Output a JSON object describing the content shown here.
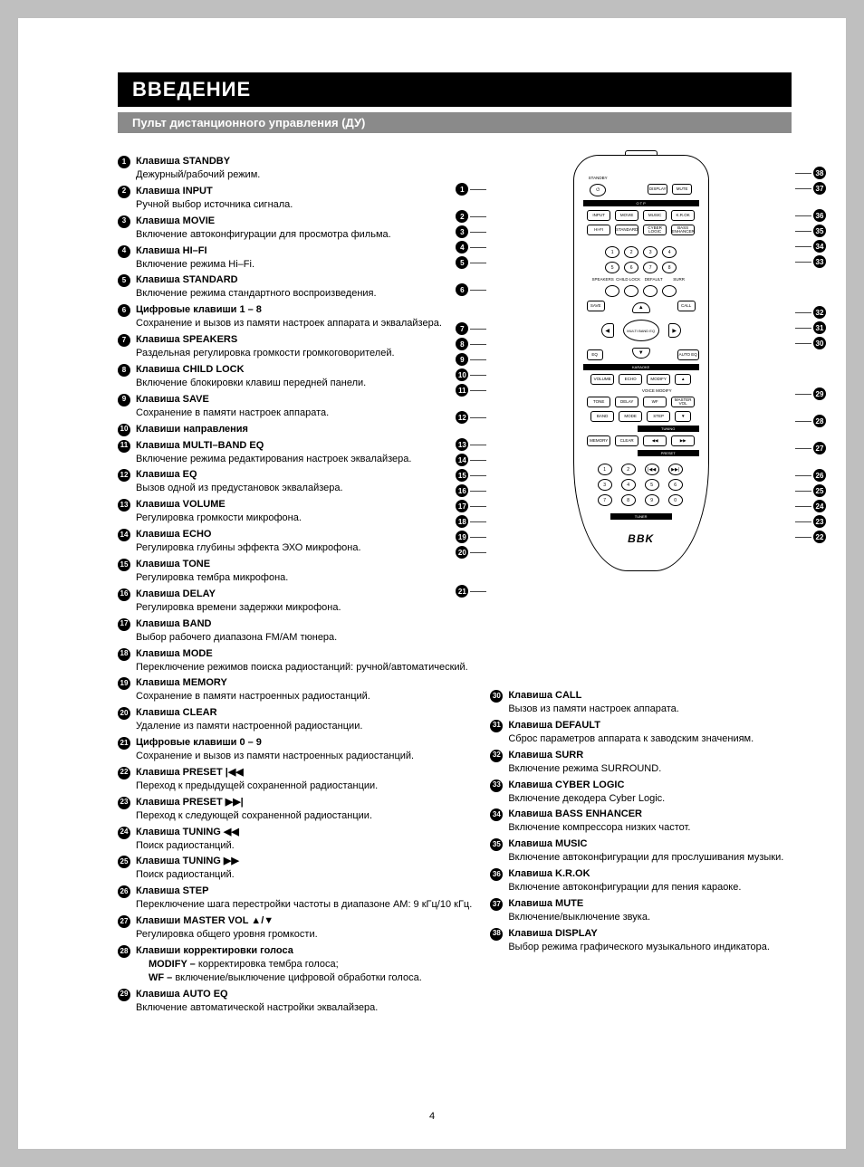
{
  "header": {
    "title": "ВВЕДЕНИЕ",
    "subtitle": "Пульт дистанционного управления (ДУ)"
  },
  "page_number": "4",
  "brand": "BBK",
  "remote": {
    "top_label": "STANDBY",
    "top_right": [
      "DISPLAY",
      "MUTE"
    ],
    "banner1": "O T P",
    "row1": [
      "INPUT",
      "MOVIE",
      "MUSIC",
      "K.R.OK"
    ],
    "row2": [
      "HI-FI",
      "STANDARD",
      "CYBER\nLOGIC",
      "BASS\nENHANCER"
    ],
    "digits8": [
      "1",
      "2",
      "3",
      "4",
      "5",
      "6",
      "7",
      "8"
    ],
    "d8_sub": [
      "SPEAKERS",
      "CHILD LOCK",
      "DEFAULT",
      "SURR"
    ],
    "save": "SAVE",
    "call": "CALL",
    "center": "MULTI BAND\nEQ",
    "eq": "EQ",
    "auto": "AUTO EQ",
    "banner2": "KARAOKE",
    "row3": [
      "VOLUME",
      "ECHO",
      "MODIFY"
    ],
    "row3_sub": "VOICE MODIFY",
    "row4": [
      "TONE",
      "DELAY",
      "WF",
      "MASTER\nVOL"
    ],
    "row5": [
      "BAND",
      "MODE",
      "STEP"
    ],
    "banner3": "TUNING",
    "row6": [
      "MEMORY",
      "CLEAR",
      "◀◀",
      "▶▶"
    ],
    "banner4": "PRESET",
    "row7": [
      "1",
      "2",
      "|◀◀",
      "▶▶|"
    ],
    "row8": [
      "3",
      "4",
      "5",
      "6"
    ],
    "row9": [
      "7",
      "8",
      "9",
      "0"
    ],
    "banner5": "TUNER"
  },
  "items_left": [
    {
      "n": "1",
      "t": "Клавиша STANDBY",
      "d": "Дежурный/рабочий режим."
    },
    {
      "n": "2",
      "t": "Клавиша INPUT",
      "d": "Ручной выбор источника сигнала."
    },
    {
      "n": "3",
      "t": "Клавиша MOVIE",
      "d": "Включение автоконфигурации для просмотра фильма."
    },
    {
      "n": "4",
      "t": "Клавиша HI–FI",
      "d": "Включение режима Hi–Fi."
    },
    {
      "n": "5",
      "t": "Клавиша STANDARD",
      "d": "Включение режима стандартного воспроизведения."
    },
    {
      "n": "6",
      "t": "Цифровые клавиши 1 – 8",
      "d": "Сохранение и вызов из памяти настроек аппарата и эквалайзера."
    },
    {
      "n": "7",
      "t": "Клавиша SPEAKERS",
      "d": "Раздельная регулировка громкости громкоговорителей."
    },
    {
      "n": "8",
      "t": "Клавиша CHILD LOCK",
      "d": "Включение блокировки клавиш передней панели."
    },
    {
      "n": "9",
      "t": "Клавиша SAVE",
      "d": "Сохранение в памяти настроек аппарата."
    },
    {
      "n": "10",
      "t": "Клавиши направления",
      "d": ""
    },
    {
      "n": "11",
      "t": "Клавиша MULTI–BAND EQ",
      "d": "Включение режима редактирования настроек эквалайзера."
    },
    {
      "n": "12",
      "t": "Клавиша EQ",
      "d": "Вызов одной из предустановок эквалайзера."
    },
    {
      "n": "13",
      "t": "Клавиша VOLUME",
      "d": "Регулировка громкости микрофона."
    },
    {
      "n": "14",
      "t": "Клавиша ECHO",
      "d": "Регулировка глубины эффекта ЭХО микрофона."
    },
    {
      "n": "15",
      "t": "Клавиша TONE",
      "d": "Регулировка тембра микрофона."
    },
    {
      "n": "16",
      "t": "Клавиша DELAY",
      "d": "Регулировка времени задержки микрофона."
    },
    {
      "n": "17",
      "t": "Клавиша BAND",
      "d": "Выбор рабочего диапазона FM/AM тюнера."
    },
    {
      "n": "18",
      "t": "Клавиша MODE",
      "d": "Переключение режимов поиска радиостанций: ручной/автоматический."
    },
    {
      "n": "19",
      "t": "Клавиша MEMORY",
      "d": "Сохранение в памяти настроенных радиостанций."
    },
    {
      "n": "20",
      "t": "Клавиша CLEAR",
      "d": "Удаление из памяти настроенной радиостанции."
    },
    {
      "n": "21",
      "t": "Цифровые клавиши 0 – 9",
      "d": "Сохранение и вызов из памяти настроенных радиостанций."
    },
    {
      "n": "22",
      "t": "Клавиша PRESET |◀◀",
      "d": "Переход к предыдущей сохраненной радиостанции."
    },
    {
      "n": "23",
      "t": "Клавиша PRESET ▶▶|",
      "d": "Переход к следующей сохраненной радиостанции."
    },
    {
      "n": "24",
      "t": "Клавиша TUNING ◀◀",
      "d": "Поиск радиостанций."
    },
    {
      "n": "25",
      "t": "Клавиша TUNING ▶▶",
      "d": "Поиск радиостанций."
    },
    {
      "n": "26",
      "t": "Клавиша STEP",
      "d": "Переключение шага перестройки частоты в диапазоне АМ: 9 кГц/10 кГц."
    },
    {
      "n": "27",
      "t": "Клавиши MASTER VOL ▲/▼",
      "d": "Регулировка общего уровня громкости."
    },
    {
      "n": "28",
      "t": "Клавиши корректировки голоса",
      "d": "",
      "sub": [
        "MODIFY – корректировка тембра голоса;",
        "WF – включение/выключение цифровой обработки голоса."
      ]
    },
    {
      "n": "29",
      "t": "Клавиша AUTO EQ",
      "d": "Включение автоматической настройки эквалайзера."
    }
  ],
  "items_right": [
    {
      "n": "30",
      "t": "Клавиша CALL",
      "d": "Вызов из памяти настроек аппарата."
    },
    {
      "n": "31",
      "t": "Клавиша DEFAULT",
      "d": "Сброс параметров аппарата к заводским значениям."
    },
    {
      "n": "32",
      "t": "Клавиша SURR",
      "d": "Включение режима SURROUND."
    },
    {
      "n": "33",
      "t": "Клавиша CYBER LOGIC",
      "d": "Включение декодера Cyber Logic."
    },
    {
      "n": "34",
      "t": "Клавиша BASS ENHANCER",
      "d": "Включение компрессора низких частот."
    },
    {
      "n": "35",
      "t": "Клавиша MUSIC",
      "d": "Включение автоконфигурации для прослушивания музыки."
    },
    {
      "n": "36",
      "t": "Клавиша K.R.OK",
      "d": "Включение автоконфигурации для пения караоке."
    },
    {
      "n": "37",
      "t": "Клавиша MUTE",
      "d": "Включение/выключение звука."
    },
    {
      "n": "38",
      "t": "Клавиша DISPLAY",
      "d": "Выбор режима графического музыкального индикатора."
    }
  ],
  "leaders_left": [
    "1",
    "",
    "2",
    "3",
    "4",
    "5",
    "",
    "6",
    "",
    "",
    "7",
    "8",
    "9",
    "10",
    "11",
    "",
    "12",
    "",
    "13",
    "14",
    "15",
    "16",
    "17",
    "18",
    "19",
    "20",
    "",
    "",
    "21"
  ],
  "leaders_right": [
    "38",
    "37",
    "",
    "36",
    "35",
    "34",
    "33",
    "",
    "",
    "",
    "32",
    "31",
    "30",
    "",
    "",
    "",
    "29",
    "",
    "28",
    "",
    "27",
    "",
    "26",
    "25",
    "24",
    "23",
    "22"
  ]
}
